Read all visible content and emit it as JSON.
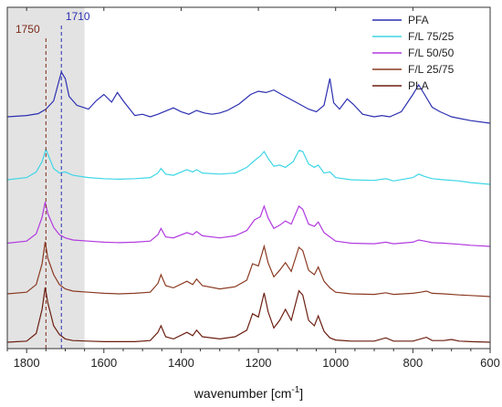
{
  "chart_data": {
    "type": "line",
    "xlabel": "wavenumber [cm",
    "xlabel_sup": "-1",
    "xlabel_end": "]",
    "x_reversed": true,
    "xlim": [
      1850,
      600
    ],
    "xticks": [
      1800,
      1600,
      1400,
      1200,
      1000,
      800,
      600
    ],
    "y_ticks_shown": false,
    "highlight_band": [
      1850,
      1650
    ],
    "highlight_color": "#e3e3e3",
    "legend_position": "top-right",
    "annotations": [
      {
        "label": "1710",
        "x": 1710,
        "color": "#2b2fb0"
      },
      {
        "label": "1750",
        "x": 1750,
        "color": "#7a2a18"
      }
    ],
    "series": [
      {
        "name": "PFA",
        "color": "#2b2fb0",
        "offset": 4,
        "points": [
          [
            1850,
            0.1
          ],
          [
            1800,
            0.12
          ],
          [
            1770,
            0.15
          ],
          [
            1750,
            0.22
          ],
          [
            1730,
            0.35
          ],
          [
            1710,
            0.8
          ],
          [
            1700,
            0.7
          ],
          [
            1690,
            0.42
          ],
          [
            1670,
            0.28
          ],
          [
            1640,
            0.22
          ],
          [
            1620,
            0.35
          ],
          [
            1600,
            0.45
          ],
          [
            1580,
            0.33
          ],
          [
            1565,
            0.48
          ],
          [
            1550,
            0.35
          ],
          [
            1520,
            0.12
          ],
          [
            1500,
            0.14
          ],
          [
            1480,
            0.1
          ],
          [
            1460,
            0.14
          ],
          [
            1420,
            0.24
          ],
          [
            1400,
            0.18
          ],
          [
            1380,
            0.14
          ],
          [
            1360,
            0.2
          ],
          [
            1340,
            0.16
          ],
          [
            1320,
            0.14
          ],
          [
            1300,
            0.16
          ],
          [
            1280,
            0.2
          ],
          [
            1250,
            0.3
          ],
          [
            1220,
            0.45
          ],
          [
            1200,
            0.5
          ],
          [
            1180,
            0.48
          ],
          [
            1160,
            0.52
          ],
          [
            1140,
            0.45
          ],
          [
            1100,
            0.32
          ],
          [
            1070,
            0.22
          ],
          [
            1050,
            0.18
          ],
          [
            1030,
            0.28
          ],
          [
            1015,
            0.7
          ],
          [
            1005,
            0.32
          ],
          [
            990,
            0.22
          ],
          [
            970,
            0.38
          ],
          [
            955,
            0.3
          ],
          [
            930,
            0.14
          ],
          [
            900,
            0.1
          ],
          [
            880,
            0.12
          ],
          [
            860,
            0.1
          ],
          [
            830,
            0.18
          ],
          [
            800,
            0.45
          ],
          [
            785,
            0.6
          ],
          [
            770,
            0.45
          ],
          [
            750,
            0.25
          ],
          [
            730,
            0.18
          ],
          [
            700,
            0.1
          ],
          [
            650,
            0.04
          ],
          [
            600,
            0.0
          ]
        ]
      },
      {
        "name": "F/L 75/25",
        "color": "#3ed6e6",
        "offset": 3,
        "points": [
          [
            1850,
            0.08
          ],
          [
            1800,
            0.12
          ],
          [
            1775,
            0.22
          ],
          [
            1760,
            0.4
          ],
          [
            1750,
            0.62
          ],
          [
            1742,
            0.48
          ],
          [
            1730,
            0.28
          ],
          [
            1715,
            0.2
          ],
          [
            1700,
            0.22
          ],
          [
            1680,
            0.16
          ],
          [
            1640,
            0.12
          ],
          [
            1600,
            0.1
          ],
          [
            1560,
            0.09
          ],
          [
            1520,
            0.1
          ],
          [
            1480,
            0.12
          ],
          [
            1460,
            0.2
          ],
          [
            1452,
            0.28
          ],
          [
            1440,
            0.18
          ],
          [
            1420,
            0.16
          ],
          [
            1385,
            0.26
          ],
          [
            1370,
            0.22
          ],
          [
            1360,
            0.26
          ],
          [
            1345,
            0.2
          ],
          [
            1300,
            0.18
          ],
          [
            1260,
            0.2
          ],
          [
            1230,
            0.3
          ],
          [
            1210,
            0.42
          ],
          [
            1195,
            0.5
          ],
          [
            1185,
            0.58
          ],
          [
            1175,
            0.46
          ],
          [
            1160,
            0.32
          ],
          [
            1145,
            0.34
          ],
          [
            1130,
            0.3
          ],
          [
            1110,
            0.4
          ],
          [
            1095,
            0.6
          ],
          [
            1085,
            0.58
          ],
          [
            1070,
            0.36
          ],
          [
            1055,
            0.3
          ],
          [
            1045,
            0.34
          ],
          [
            1030,
            0.2
          ],
          [
            1015,
            0.22
          ],
          [
            1000,
            0.12
          ],
          [
            960,
            0.08
          ],
          [
            900,
            0.07
          ],
          [
            870,
            0.1
          ],
          [
            850,
            0.06
          ],
          [
            800,
            0.12
          ],
          [
            785,
            0.18
          ],
          [
            770,
            0.14
          ],
          [
            750,
            0.1
          ],
          [
            720,
            0.08
          ],
          [
            680,
            0.06
          ],
          [
            650,
            0.03
          ],
          [
            600,
            0.0
          ]
        ]
      },
      {
        "name": "F/L 50/50",
        "color": "#b23ae0",
        "offset": 2,
        "points": [
          [
            1850,
            0.06
          ],
          [
            1800,
            0.1
          ],
          [
            1775,
            0.24
          ],
          [
            1760,
            0.55
          ],
          [
            1752,
            0.84
          ],
          [
            1745,
            0.62
          ],
          [
            1730,
            0.36
          ],
          [
            1715,
            0.22
          ],
          [
            1700,
            0.16
          ],
          [
            1680,
            0.12
          ],
          [
            1640,
            0.1
          ],
          [
            1600,
            0.08
          ],
          [
            1560,
            0.07
          ],
          [
            1520,
            0.08
          ],
          [
            1480,
            0.1
          ],
          [
            1460,
            0.22
          ],
          [
            1452,
            0.34
          ],
          [
            1440,
            0.18
          ],
          [
            1420,
            0.16
          ],
          [
            1385,
            0.26
          ],
          [
            1370,
            0.22
          ],
          [
            1360,
            0.28
          ],
          [
            1345,
            0.2
          ],
          [
            1300,
            0.16
          ],
          [
            1260,
            0.2
          ],
          [
            1230,
            0.3
          ],
          [
            1210,
            0.5
          ],
          [
            1195,
            0.56
          ],
          [
            1185,
            0.76
          ],
          [
            1175,
            0.54
          ],
          [
            1160,
            0.34
          ],
          [
            1145,
            0.4
          ],
          [
            1130,
            0.48
          ],
          [
            1115,
            0.42
          ],
          [
            1095,
            0.76
          ],
          [
            1085,
            0.7
          ],
          [
            1070,
            0.42
          ],
          [
            1055,
            0.38
          ],
          [
            1045,
            0.46
          ],
          [
            1030,
            0.26
          ],
          [
            1015,
            0.18
          ],
          [
            1000,
            0.1
          ],
          [
            960,
            0.06
          ],
          [
            900,
            0.05
          ],
          [
            870,
            0.08
          ],
          [
            850,
            0.05
          ],
          [
            800,
            0.08
          ],
          [
            785,
            0.12
          ],
          [
            770,
            0.1
          ],
          [
            750,
            0.07
          ],
          [
            720,
            0.06
          ],
          [
            680,
            0.04
          ],
          [
            650,
            0.02
          ],
          [
            600,
            0.0
          ]
        ]
      },
      {
        "name": "F/L 25/75",
        "color": "#8b3a22",
        "offset": 1,
        "points": [
          [
            1850,
            0.05
          ],
          [
            1800,
            0.08
          ],
          [
            1775,
            0.22
          ],
          [
            1760,
            0.6
          ],
          [
            1752,
            1.0
          ],
          [
            1745,
            0.7
          ],
          [
            1730,
            0.4
          ],
          [
            1715,
            0.22
          ],
          [
            1700,
            0.14
          ],
          [
            1680,
            0.1
          ],
          [
            1640,
            0.08
          ],
          [
            1600,
            0.06
          ],
          [
            1560,
            0.05
          ],
          [
            1520,
            0.06
          ],
          [
            1480,
            0.08
          ],
          [
            1460,
            0.24
          ],
          [
            1452,
            0.4
          ],
          [
            1440,
            0.2
          ],
          [
            1420,
            0.16
          ],
          [
            1385,
            0.28
          ],
          [
            1370,
            0.22
          ],
          [
            1360,
            0.32
          ],
          [
            1345,
            0.2
          ],
          [
            1300,
            0.14
          ],
          [
            1260,
            0.18
          ],
          [
            1230,
            0.3
          ],
          [
            1215,
            0.6
          ],
          [
            1200,
            0.56
          ],
          [
            1185,
            0.92
          ],
          [
            1175,
            0.62
          ],
          [
            1160,
            0.36
          ],
          [
            1145,
            0.48
          ],
          [
            1130,
            0.62
          ],
          [
            1115,
            0.46
          ],
          [
            1095,
            0.9
          ],
          [
            1085,
            0.84
          ],
          [
            1070,
            0.48
          ],
          [
            1055,
            0.4
          ],
          [
            1045,
            0.54
          ],
          [
            1030,
            0.28
          ],
          [
            1015,
            0.16
          ],
          [
            1000,
            0.08
          ],
          [
            960,
            0.05
          ],
          [
            900,
            0.04
          ],
          [
            870,
            0.07
          ],
          [
            850,
            0.04
          ],
          [
            800,
            0.06
          ],
          [
            780,
            0.08
          ],
          [
            765,
            0.1
          ],
          [
            750,
            0.06
          ],
          [
            720,
            0.05
          ],
          [
            680,
            0.03
          ],
          [
            650,
            0.02
          ],
          [
            600,
            0.0
          ]
        ]
      },
      {
        "name": "PLA",
        "color": "#6b1e10",
        "offset": 0,
        "points": [
          [
            1850,
            0.0
          ],
          [
            1800,
            0.02
          ],
          [
            1775,
            0.16
          ],
          [
            1760,
            0.6
          ],
          [
            1752,
            1.0
          ],
          [
            1745,
            0.72
          ],
          [
            1730,
            0.3
          ],
          [
            1715,
            0.14
          ],
          [
            1700,
            0.06
          ],
          [
            1680,
            0.03
          ],
          [
            1640,
            0.02
          ],
          [
            1600,
            0.01
          ],
          [
            1560,
            0.01
          ],
          [
            1520,
            0.01
          ],
          [
            1480,
            0.03
          ],
          [
            1460,
            0.18
          ],
          [
            1452,
            0.3
          ],
          [
            1440,
            0.1
          ],
          [
            1420,
            0.06
          ],
          [
            1385,
            0.18
          ],
          [
            1370,
            0.12
          ],
          [
            1360,
            0.22
          ],
          [
            1345,
            0.1
          ],
          [
            1300,
            0.06
          ],
          [
            1260,
            0.1
          ],
          [
            1230,
            0.22
          ],
          [
            1215,
            0.52
          ],
          [
            1200,
            0.46
          ],
          [
            1185,
            0.9
          ],
          [
            1175,
            0.56
          ],
          [
            1160,
            0.26
          ],
          [
            1145,
            0.4
          ],
          [
            1130,
            0.6
          ],
          [
            1115,
            0.4
          ],
          [
            1095,
            0.94
          ],
          [
            1085,
            0.86
          ],
          [
            1070,
            0.4
          ],
          [
            1055,
            0.3
          ],
          [
            1045,
            0.48
          ],
          [
            1030,
            0.2
          ],
          [
            1015,
            0.08
          ],
          [
            1000,
            0.04
          ],
          [
            960,
            0.02
          ],
          [
            900,
            0.02
          ],
          [
            870,
            0.08
          ],
          [
            850,
            0.02
          ],
          [
            800,
            0.02
          ],
          [
            765,
            0.09
          ],
          [
            750,
            0.03
          ],
          [
            720,
            0.03
          ],
          [
            700,
            0.05
          ],
          [
            680,
            0.02
          ],
          [
            650,
            0.01
          ],
          [
            600,
            0.0
          ]
        ]
      }
    ]
  }
}
